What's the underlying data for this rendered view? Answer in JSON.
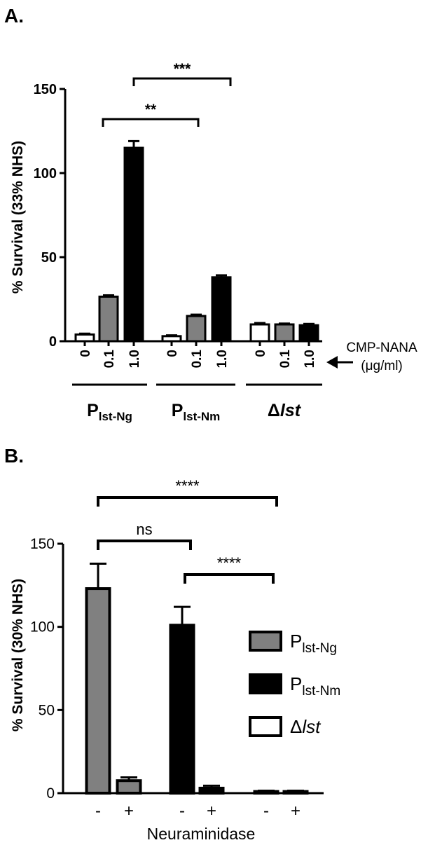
{
  "chart_data": [
    {
      "type": "bar",
      "panel_label": "A.",
      "ylabel": "% Survival (33% NHS)",
      "ylim": [
        0,
        150
      ],
      "yticks": [
        "0",
        "50",
        "100",
        "150"
      ],
      "groups": [
        {
          "label_main": "P",
          "label_sub": "lst-Ng",
          "italic": false
        },
        {
          "label_main": "P",
          "label_sub": "lst-Nm",
          "italic": false
        },
        {
          "label_main": "Δ",
          "label_sub": "lst",
          "italic": true
        }
      ],
      "x_tick_labels": [
        "0",
        "0.1",
        "1.0"
      ],
      "condition_label": "CMP-NANA",
      "condition_unit": "(μg/ml)",
      "bars": [
        {
          "group": 0,
          "dose": "0",
          "value": 4,
          "error": 0.5,
          "fill": "#ffffff"
        },
        {
          "group": 0,
          "dose": "0.1",
          "value": 26.5,
          "error": 0.8,
          "fill": "#808080"
        },
        {
          "group": 0,
          "dose": "1.0",
          "value": 115,
          "error": 4,
          "fill": "#000000"
        },
        {
          "group": 1,
          "dose": "0",
          "value": 3,
          "error": 0.5,
          "fill": "#ffffff"
        },
        {
          "group": 1,
          "dose": "0.1",
          "value": 15,
          "error": 0.8,
          "fill": "#808080"
        },
        {
          "group": 1,
          "dose": "1.0",
          "value": 38,
          "error": 1.2,
          "fill": "#000000"
        },
        {
          "group": 2,
          "dose": "0",
          "value": 10,
          "error": 0.8,
          "fill": "#ffffff"
        },
        {
          "group": 2,
          "dose": "0.1",
          "value": 10,
          "error": 0.5,
          "fill": "#808080"
        },
        {
          "group": 2,
          "dose": "1.0",
          "value": 9.5,
          "error": 0.8,
          "fill": "#000000"
        }
      ],
      "significance": [
        {
          "from_bar": 2,
          "to_bar": 5,
          "label": "**"
        },
        {
          "from_bar": 2,
          "to_bar": 8,
          "label": "***"
        }
      ]
    },
    {
      "type": "bar",
      "panel_label": "B.",
      "ylabel": "% Survival (30% NHS)",
      "xlabel": "Neuraminidase",
      "ylim": [
        0,
        150
      ],
      "yticks": [
        "0",
        "50",
        "100",
        "150"
      ],
      "x_tick_labels": [
        "-",
        "+",
        "-",
        "+",
        "-",
        "+"
      ],
      "legend": [
        {
          "main": "P",
          "sub": "lst-Ng",
          "italic": false,
          "fill": "#808080"
        },
        {
          "main": "P",
          "sub": "lst-Nm",
          "italic": false,
          "fill": "#000000"
        },
        {
          "main": "Δ",
          "sub": "lst",
          "italic": true,
          "fill": "#ffffff"
        }
      ],
      "bars": [
        {
          "strain": 0,
          "neuraminidase": "-",
          "value": 123,
          "error": 15,
          "fill": "#808080"
        },
        {
          "strain": 0,
          "neuraminidase": "+",
          "value": 7.5,
          "error": 2,
          "fill": "#808080"
        },
        {
          "strain": 1,
          "neuraminidase": "-",
          "value": 101,
          "error": 11,
          "fill": "#000000"
        },
        {
          "strain": 1,
          "neuraminidase": "+",
          "value": 3,
          "error": 1.5,
          "fill": "#000000"
        },
        {
          "strain": 2,
          "neuraminidase": "-",
          "value": 1,
          "error": 0.5,
          "fill": "#ffffff"
        },
        {
          "strain": 2,
          "neuraminidase": "+",
          "value": 1,
          "error": 0.5,
          "fill": "#ffffff"
        }
      ],
      "significance": [
        {
          "from_bar": 0,
          "to_bar": 4,
          "label": "****"
        },
        {
          "from_bar": 0,
          "to_bar": 2,
          "label": "ns"
        },
        {
          "from_bar": 2,
          "to_bar": 4,
          "label": "****"
        }
      ]
    }
  ]
}
